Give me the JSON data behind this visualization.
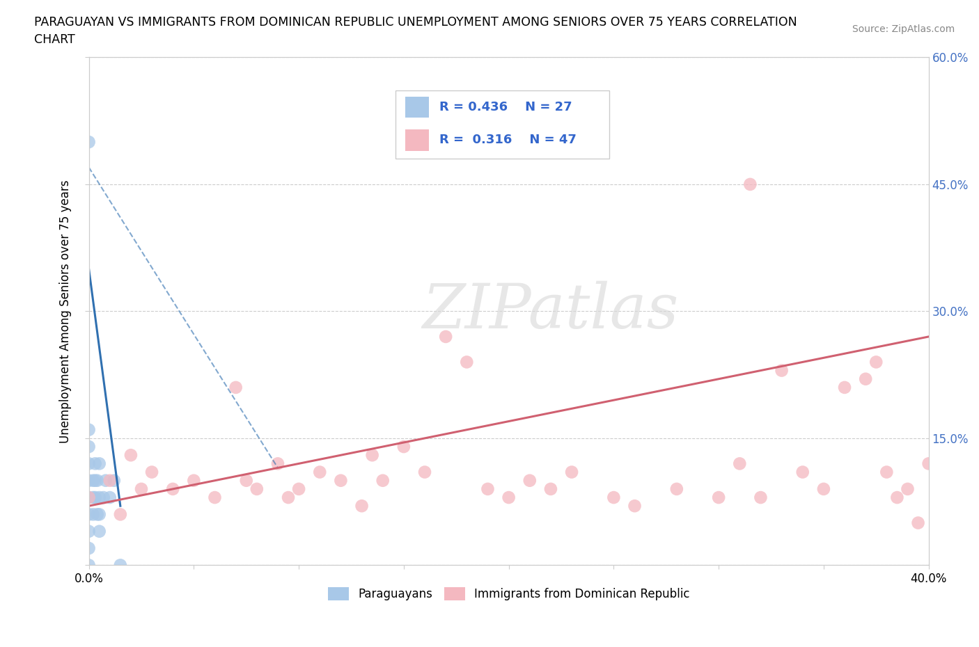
{
  "title_line1": "PARAGUAYAN VS IMMIGRANTS FROM DOMINICAN REPUBLIC UNEMPLOYMENT AMONG SENIORS OVER 75 YEARS CORRELATION",
  "title_line2": "CHART",
  "source": "Source: ZipAtlas.com",
  "ylabel": "Unemployment Among Seniors over 75 years",
  "x_min": 0.0,
  "x_max": 0.4,
  "y_min": 0.0,
  "y_max": 0.6,
  "watermark_text": "ZIPatlas",
  "legend_r1": "R = 0.436",
  "legend_n1": "N = 27",
  "legend_r2": "R = 0.316",
  "legend_n2": "N = 47",
  "color_paraguayan": "#a8c8e8",
  "color_dominican": "#f4b8c0",
  "color_line1": "#3070b0",
  "color_line2": "#d06070",
  "label_paraguayan": "Paraguayans",
  "label_dominican": "Immigrants from Dominican Republic",
  "paraguayan_x": [
    0.0,
    0.0,
    0.0,
    0.0,
    0.0,
    0.0,
    0.0,
    0.0,
    0.0,
    0.0,
    0.002,
    0.002,
    0.002,
    0.003,
    0.003,
    0.003,
    0.004,
    0.004,
    0.005,
    0.005,
    0.005,
    0.005,
    0.007,
    0.008,
    0.01,
    0.012,
    0.015
  ],
  "paraguayan_y": [
    0.0,
    0.02,
    0.04,
    0.06,
    0.08,
    0.1,
    0.12,
    0.14,
    0.16,
    0.5,
    0.06,
    0.08,
    0.1,
    0.08,
    0.1,
    0.12,
    0.06,
    0.1,
    0.04,
    0.06,
    0.08,
    0.12,
    0.08,
    0.1,
    0.08,
    0.1,
    0.0
  ],
  "dominican_x": [
    0.0,
    0.01,
    0.015,
    0.02,
    0.025,
    0.03,
    0.04,
    0.05,
    0.06,
    0.07,
    0.075,
    0.08,
    0.09,
    0.095,
    0.1,
    0.11,
    0.12,
    0.13,
    0.135,
    0.14,
    0.15,
    0.16,
    0.17,
    0.18,
    0.19,
    0.2,
    0.21,
    0.22,
    0.23,
    0.25,
    0.26,
    0.28,
    0.3,
    0.31,
    0.315,
    0.32,
    0.33,
    0.34,
    0.35,
    0.36,
    0.37,
    0.375,
    0.38,
    0.385,
    0.39,
    0.395,
    0.4
  ],
  "dominican_y": [
    0.08,
    0.1,
    0.06,
    0.13,
    0.09,
    0.11,
    0.09,
    0.1,
    0.08,
    0.21,
    0.1,
    0.09,
    0.12,
    0.08,
    0.09,
    0.11,
    0.1,
    0.07,
    0.13,
    0.1,
    0.14,
    0.11,
    0.27,
    0.24,
    0.09,
    0.08,
    0.1,
    0.09,
    0.11,
    0.08,
    0.07,
    0.09,
    0.08,
    0.12,
    0.45,
    0.08,
    0.23,
    0.11,
    0.09,
    0.21,
    0.22,
    0.24,
    0.11,
    0.08,
    0.09,
    0.05,
    0.12
  ],
  "background_color": "#ffffff",
  "grid_color": "#cccccc",
  "regression_par_x0": 0.0,
  "regression_par_y0": 0.35,
  "regression_par_x1": 0.015,
  "regression_par_y1": 0.07,
  "regression_par_dashed_x0": 0.0,
  "regression_par_dashed_y0": 0.47,
  "regression_par_dashed_x1": 0.09,
  "regression_par_dashed_y1": 0.115,
  "regression_dom_x0": 0.0,
  "regression_dom_y0": 0.07,
  "regression_dom_x1": 0.4,
  "regression_dom_y1": 0.27
}
